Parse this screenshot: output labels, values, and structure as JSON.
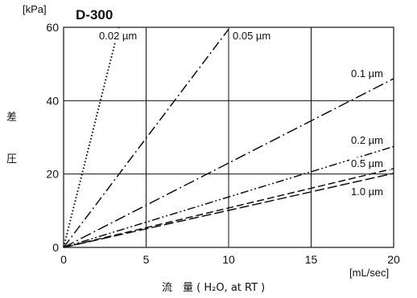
{
  "chart_data": {
    "type": "line",
    "title": "D-300",
    "y_unit": "[kPa]",
    "x_unit": "[mL/sec]",
    "ylabel_chars": [
      "差",
      "圧"
    ],
    "xlabel": "流　量 ( H₂O, at RT )",
    "xlim": [
      0,
      20
    ],
    "ylim": [
      0,
      60
    ],
    "x_ticks": [
      0,
      5,
      10,
      15,
      20
    ],
    "y_ticks": [
      0,
      20,
      40,
      60
    ],
    "grid": true,
    "series": [
      {
        "name": "0.02 µm",
        "dash": "dotted",
        "points": [
          [
            0,
            0
          ],
          [
            3.35,
            60
          ]
        ]
      },
      {
        "name": "0.05 µm",
        "dash": "dashdot",
        "points": [
          [
            0,
            0
          ],
          [
            10,
            59.5
          ]
        ]
      },
      {
        "name": "0.1 µm",
        "dash": "dashdot-long",
        "points": [
          [
            0,
            0
          ],
          [
            20,
            46
          ]
        ]
      },
      {
        "name": "0.2 µm",
        "dash": "dashdotdot",
        "points": [
          [
            0,
            0
          ],
          [
            20,
            27.5
          ]
        ]
      },
      {
        "name": "0.5 µm",
        "dash": "dashed",
        "points": [
          [
            0,
            0
          ],
          [
            20,
            21.5
          ]
        ]
      },
      {
        "name": "1.0 µm",
        "dash": "longdash",
        "points": [
          [
            0,
            0
          ],
          [
            20,
            20.2
          ]
        ]
      }
    ]
  }
}
